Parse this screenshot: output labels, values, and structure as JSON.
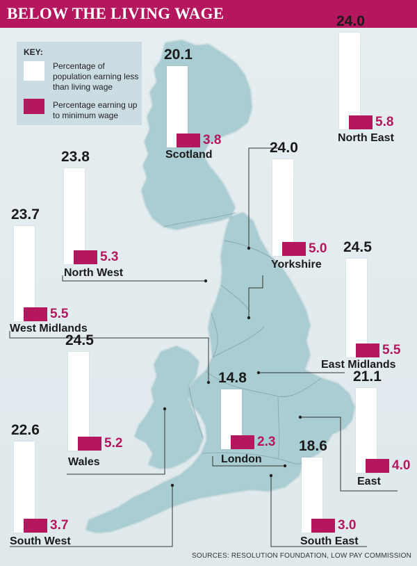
{
  "title": "BELOW THE LIVING WAGE",
  "key": {
    "label": "KEY:",
    "white_label": "Percentage of population earning less than living wage",
    "magenta_label": "Percentage earning up to minimum wage"
  },
  "source": "SOURCES:  RESOLUTION FOUNDATION, LOW PAY COMMISSION",
  "colors": {
    "accent": "#b5175e",
    "bar": "#ffffff",
    "map": "#a9cdd2",
    "background": "#e3ecef"
  },
  "chart_data": {
    "type": "bar",
    "title": "BELOW THE LIVING WAGE",
    "categories": [
      "Scotland",
      "North East",
      "North West",
      "Yorkshire",
      "West Midlands",
      "East Midlands",
      "Wales",
      "London",
      "East",
      "South West",
      "South East"
    ],
    "series": [
      {
        "name": "Percentage of population earning less than living wage",
        "values": [
          20.1,
          24.0,
          23.8,
          24.0,
          23.7,
          24.5,
          24.5,
          14.8,
          21.1,
          22.6,
          18.6
        ]
      },
      {
        "name": "Percentage earning up to minimum wage",
        "values": [
          3.8,
          5.8,
          5.3,
          5.0,
          5.5,
          5.5,
          5.2,
          2.3,
          4.0,
          3.7,
          3.0
        ]
      }
    ],
    "value_labels": {
      "total": [
        "20.1",
        "24.0",
        "23.8",
        "24.0",
        "23.7",
        "24.5",
        "24.5",
        "14.8",
        "21.1",
        "22.6",
        "18.6"
      ],
      "minimum": [
        "3.8",
        "5.8",
        "5.3",
        "5.0",
        "5.5",
        "5.5",
        "5.2",
        "2.3",
        "4.0",
        "3.7",
        "3.0"
      ]
    },
    "legend": "top-left",
    "grid": false
  }
}
